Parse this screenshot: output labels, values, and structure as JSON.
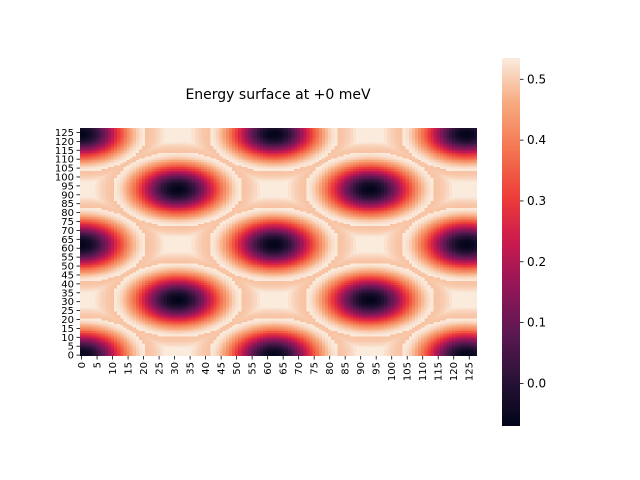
{
  "chart_data": {
    "type": "heatmap",
    "title": "Energy surface at +0 meV",
    "xlabel": "",
    "ylabel": "",
    "grid_size": 128,
    "x_tick_labels": [
      "0",
      "5",
      "10",
      "15",
      "20",
      "25",
      "30",
      "35",
      "40",
      "45",
      "50",
      "55",
      "60",
      "65",
      "70",
      "75",
      "80",
      "85",
      "90",
      "95",
      "100",
      "105",
      "110",
      "115",
      "120",
      "125"
    ],
    "y_tick_labels": [
      "0",
      "5",
      "10",
      "15",
      "20",
      "25",
      "30",
      "35",
      "40",
      "45",
      "50",
      "55",
      "60",
      "65",
      "70",
      "75",
      "80",
      "85",
      "90",
      "95",
      "100",
      "105",
      "110",
      "115",
      "120",
      "125"
    ],
    "y_axis_origin": "bottom",
    "minima_centers": [
      {
        "x": 0,
        "y": 0
      },
      {
        "x": 62,
        "y": 0
      },
      {
        "x": 124,
        "y": 0
      },
      {
        "x": 31,
        "y": 31
      },
      {
        "x": 93,
        "y": 31
      },
      {
        "x": 0,
        "y": 62
      },
      {
        "x": 62,
        "y": 62
      },
      {
        "x": 124,
        "y": 62
      },
      {
        "x": 31,
        "y": 93
      },
      {
        "x": 93,
        "y": 93
      },
      {
        "x": 0,
        "y": 124
      },
      {
        "x": 62,
        "y": 124
      },
      {
        "x": 124,
        "y": 124
      }
    ],
    "value_range": [
      -0.07,
      0.535
    ],
    "colorbar": {
      "colormap": "rocket",
      "ticks": [
        "0.0",
        "0.1",
        "0.2",
        "0.3",
        "0.4",
        "0.5"
      ],
      "tick_values": [
        0.0,
        0.1,
        0.2,
        0.3,
        0.4,
        0.5
      ],
      "placement": "right"
    }
  }
}
